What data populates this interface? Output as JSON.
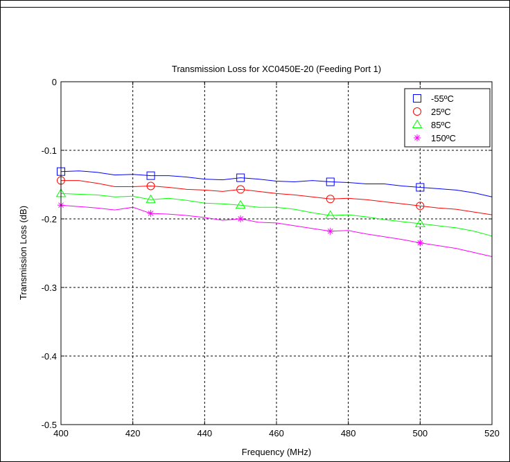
{
  "chart_data": {
    "type": "line",
    "title": "Transmission Loss for XC0450E-20 (Feeding Port 1)",
    "xlabel": "Frequency (MHz)",
    "ylabel": "Transmission Loss (dB)",
    "xlim": [
      400,
      520
    ],
    "ylim": [
      -0.5,
      0
    ],
    "x_ticks": [
      400,
      420,
      440,
      460,
      480,
      500,
      520
    ],
    "x_tick_labels": [
      "400",
      "420",
      "440",
      "460",
      "480",
      "500",
      "520"
    ],
    "y_ticks": [
      0,
      -0.1,
      -0.2,
      -0.3,
      -0.4,
      -0.5
    ],
    "y_tick_labels": [
      "0",
      "-0.1",
      "-0.2",
      "-0.3",
      "-0.4",
      "-0.5"
    ],
    "grid": true,
    "legend_position": "top-right",
    "series": [
      {
        "name": "-55ºC",
        "color": "#0000ff",
        "marker": "square",
        "x": [
          400,
          405,
          410,
          415,
          420,
          425,
          430,
          435,
          440,
          445,
          450,
          455,
          460,
          465,
          470,
          475,
          480,
          485,
          490,
          495,
          500,
          505,
          510,
          515,
          520
        ],
        "y": [
          -0.131,
          -0.13,
          -0.132,
          -0.136,
          -0.135,
          -0.137,
          -0.137,
          -0.139,
          -0.142,
          -0.143,
          -0.14,
          -0.142,
          -0.145,
          -0.146,
          -0.144,
          -0.146,
          -0.147,
          -0.149,
          -0.149,
          -0.152,
          -0.154,
          -0.156,
          -0.158,
          -0.162,
          -0.168
        ],
        "marker_x": [
          400,
          425,
          450,
          475,
          500
        ],
        "marker_y": [
          -0.131,
          -0.137,
          -0.14,
          -0.146,
          -0.154
        ]
      },
      {
        "name": "25ºC",
        "color": "#ff0000",
        "marker": "circle",
        "x": [
          400,
          405,
          410,
          415,
          420,
          425,
          430,
          435,
          440,
          445,
          450,
          455,
          460,
          465,
          470,
          475,
          480,
          485,
          490,
          495,
          500,
          505,
          510,
          515,
          520
        ],
        "y": [
          -0.144,
          -0.144,
          -0.148,
          -0.153,
          -0.153,
          -0.152,
          -0.154,
          -0.157,
          -0.158,
          -0.16,
          -0.157,
          -0.16,
          -0.163,
          -0.165,
          -0.168,
          -0.171,
          -0.17,
          -0.172,
          -0.175,
          -0.178,
          -0.181,
          -0.184,
          -0.186,
          -0.19,
          -0.194
        ],
        "marker_x": [
          400,
          425,
          450,
          475,
          500
        ],
        "marker_y": [
          -0.144,
          -0.152,
          -0.157,
          -0.171,
          -0.181
        ]
      },
      {
        "name": "85ºC",
        "color": "#00ff00",
        "marker": "triangle",
        "x": [
          400,
          405,
          410,
          415,
          420,
          425,
          430,
          435,
          440,
          445,
          450,
          455,
          460,
          465,
          470,
          475,
          480,
          485,
          490,
          495,
          500,
          505,
          510,
          515,
          520
        ],
        "y": [
          -0.163,
          -0.164,
          -0.165,
          -0.168,
          -0.167,
          -0.172,
          -0.17,
          -0.173,
          -0.177,
          -0.178,
          -0.18,
          -0.183,
          -0.183,
          -0.186,
          -0.191,
          -0.195,
          -0.194,
          -0.197,
          -0.201,
          -0.204,
          -0.207,
          -0.21,
          -0.213,
          -0.218,
          -0.225
        ],
        "marker_x": [
          400,
          425,
          450,
          475,
          500
        ],
        "marker_y": [
          -0.163,
          -0.172,
          -0.18,
          -0.195,
          -0.207
        ]
      },
      {
        "name": "150ºC",
        "color": "#ff00ff",
        "marker": "asterisk",
        "x": [
          400,
          405,
          410,
          415,
          420,
          425,
          430,
          435,
          440,
          445,
          450,
          455,
          460,
          465,
          470,
          475,
          480,
          485,
          490,
          495,
          500,
          505,
          510,
          515,
          520
        ],
        "y": [
          -0.18,
          -0.182,
          -0.184,
          -0.187,
          -0.183,
          -0.192,
          -0.193,
          -0.195,
          -0.198,
          -0.202,
          -0.2,
          -0.205,
          -0.206,
          -0.21,
          -0.214,
          -0.218,
          -0.217,
          -0.222,
          -0.226,
          -0.23,
          -0.235,
          -0.239,
          -0.243,
          -0.249,
          -0.255
        ],
        "marker_x": [
          400,
          425,
          450,
          475,
          500
        ],
        "marker_y": [
          -0.18,
          -0.192,
          -0.2,
          -0.218,
          -0.235
        ]
      }
    ]
  }
}
